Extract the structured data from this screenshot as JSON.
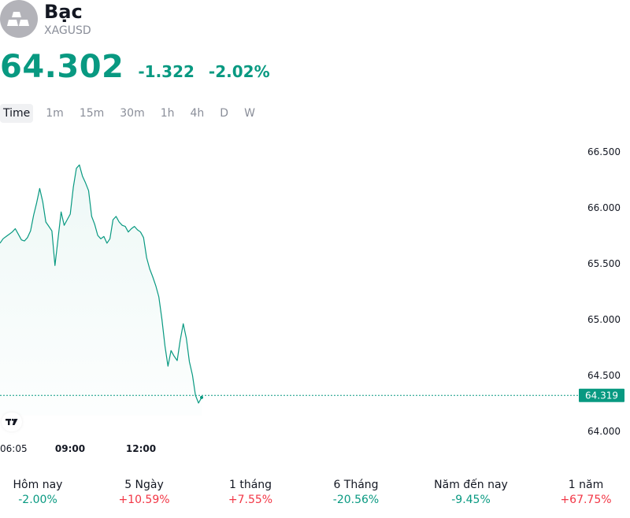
{
  "header": {
    "title": "Bạc",
    "symbol": "XAGUSD",
    "logo_icon": "silver-bars-icon"
  },
  "quote": {
    "price": "64.302",
    "change": "-1.322",
    "change_pct": "-2.02%",
    "color": "#089981"
  },
  "timeframes": {
    "items": [
      "Time",
      "1m",
      "15m",
      "30m",
      "1h",
      "4h",
      "D",
      "W"
    ],
    "active": "Time"
  },
  "chart_data": {
    "type": "area",
    "title": "",
    "xlabel": "",
    "ylabel": "",
    "x_ticks": [
      "06:05",
      "09:00",
      "12:00"
    ],
    "y_ticks": [
      "66.500",
      "66.000",
      "65.500",
      "65.000",
      "64.500",
      "64.000"
    ],
    "ylim": [
      63.9,
      66.75
    ],
    "last_price_label": "64.319",
    "line_color": "#089981",
    "grid": false,
    "series": [
      {
        "values": [
          65.68,
          65.72,
          65.74,
          65.76,
          65.78,
          65.81,
          65.76,
          65.71,
          65.7,
          65.73,
          65.79,
          65.93,
          66.04,
          66.17,
          66.05,
          65.87,
          65.83,
          65.79,
          65.48,
          65.72,
          65.96,
          65.84,
          65.89,
          65.94,
          66.18,
          66.35,
          66.38,
          66.28,
          66.22,
          66.15,
          65.92,
          65.85,
          65.75,
          65.72,
          65.74,
          65.68,
          65.72,
          65.89,
          65.92,
          65.87,
          65.84,
          65.83,
          65.78,
          65.81,
          65.83,
          65.8,
          65.78,
          65.73,
          65.55,
          65.45,
          65.38,
          65.3,
          65.2,
          65.0,
          64.76,
          64.58,
          64.72,
          64.67,
          64.63,
          64.81,
          64.96,
          64.83,
          64.62,
          64.5,
          64.32,
          64.25,
          64.3
        ]
      }
    ]
  },
  "tradingview_icon": "tradingview-logo-icon",
  "performance": [
    {
      "label": "Hôm nay",
      "value": "-2.00%",
      "dir": "neg"
    },
    {
      "label": "5 Ngày",
      "value": "+10.59%",
      "dir": "pos"
    },
    {
      "label": "1 tháng",
      "value": "+7.55%",
      "dir": "pos"
    },
    {
      "label": "6 Tháng",
      "value": "-20.56%",
      "dir": "neg"
    },
    {
      "label": "Năm đến nay",
      "value": "-9.45%",
      "dir": "neg"
    },
    {
      "label": "1 năm",
      "value": "+67.75%",
      "dir": "pos"
    }
  ]
}
